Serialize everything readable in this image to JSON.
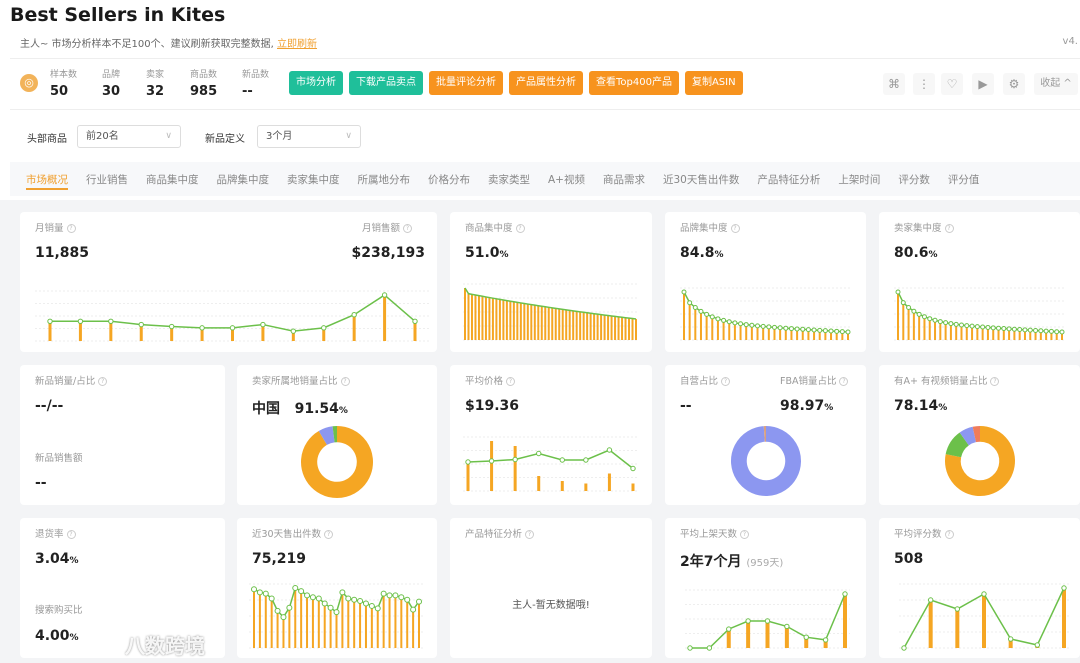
{
  "title": "Best Sellers in Kites",
  "notice": {
    "text": "主人~ 市场分析样本不足100个、建议刷新获取完整数据,",
    "link": "立即刷新"
  },
  "version": "v4.",
  "stats": [
    {
      "label": "样本数",
      "value": "50"
    },
    {
      "label": "品牌",
      "value": "30"
    },
    {
      "label": "卖家",
      "value": "32"
    },
    {
      "label": "商品数",
      "value": "985"
    },
    {
      "label": "新品数",
      "value": "--"
    }
  ],
  "buttons": [
    "市场分析",
    "下载产品卖点",
    "批量评论分析",
    "产品属性分析",
    "查看Top400产品",
    "复制ASIN"
  ],
  "toolbar": {
    "collapse": "收起 ^"
  },
  "filters": {
    "head_label": "头部商品",
    "head_value": "前20名",
    "new_label": "新品定义",
    "new_value": "3个月"
  },
  "tabs": [
    "市场概况",
    "行业销售",
    "商品集中度",
    "品牌集中度",
    "卖家集中度",
    "所属地分布",
    "价格分布",
    "卖家类型",
    "A+视频",
    "商品需求",
    "近30天售出件数",
    "产品特征分析",
    "上架时间",
    "评分数",
    "评分值"
  ],
  "colors": {
    "orange": "#f5a623",
    "green": "#6cc04a",
    "blue": "#8c97f0",
    "teal": "#1fbf9a",
    "red": "#f07c5a"
  },
  "cards": {
    "sales": {
      "title": "月销量",
      "value": "11,885",
      "title2": "月销售额",
      "value2": "$238,193",
      "bars": [
        3,
        3,
        3,
        2.5,
        2.2,
        2,
        2,
        2.5,
        1.5,
        2,
        4,
        7,
        3
      ],
      "line": [
        3,
        3,
        3,
        2.5,
        2.2,
        2,
        2,
        2.5,
        1.5,
        2,
        4,
        7,
        3
      ]
    },
    "product_conc": {
      "title": "商品集中度",
      "value": "51.0",
      "unit": "%"
    },
    "brand_conc": {
      "title": "品牌集中度",
      "value": "84.8",
      "unit": "%"
    },
    "seller_conc": {
      "title": "卖家集中度",
      "value": "80.6",
      "unit": "%"
    },
    "new_sales": {
      "title": "新品销量/占比",
      "value": "--/--",
      "title2": "新品销售额",
      "value2": "--"
    },
    "seller_loc": {
      "title": "卖家所属地销量占比",
      "country": "中国",
      "value": "91.54",
      "unit": "%",
      "slices": [
        91.54,
        6.5,
        1.96
      ]
    },
    "avg_price": {
      "title": "平均价格",
      "value": "$19.36",
      "bars": [
        0.6,
        1,
        0.9,
        0.3,
        0.2,
        0.15,
        0.35,
        0.15
      ],
      "line": [
        0.58,
        0.6,
        0.63,
        0.75,
        0.62,
        0.62,
        0.82,
        0.45
      ]
    },
    "fba": {
      "title": "自营占比",
      "value": "--",
      "title2": "FBA销量占比",
      "value2": "98.97",
      "unit": "%",
      "slices": [
        98.97,
        1.03
      ]
    },
    "aplus": {
      "title": "有A+ 有视频销量占比",
      "value": "78.14",
      "unit": "%",
      "slices": [
        78.14,
        12,
        6.5,
        3.36
      ]
    },
    "return": {
      "title": "退货率",
      "value": "3.04",
      "unit": "%",
      "title2": "搜索购买比",
      "value2": "4.00",
      "unit2": "%"
    },
    "sold30": {
      "title": "近30天售出件数",
      "value": "75,219",
      "line": [
        0.95,
        0.9,
        0.88,
        0.8,
        0.6,
        0.5,
        0.65,
        0.97,
        0.92,
        0.85,
        0.82,
        0.8,
        0.72,
        0.65,
        0.58,
        0.9,
        0.8,
        0.78,
        0.76,
        0.72,
        0.68,
        0.64,
        0.88,
        0.85,
        0.85,
        0.82,
        0.78,
        0.62,
        0.75
      ]
    },
    "features": {
      "title": "产品特征分析",
      "empty": "主人-暂无数据哦!"
    },
    "listing": {
      "title": "平均上架天数",
      "value": "2年7个月",
      "sub": "(959天)",
      "bars": [
        0,
        0,
        0.35,
        0.5,
        0.5,
        0.4,
        0.2,
        0.15,
        1
      ],
      "line": [
        0,
        0,
        0.35,
        0.5,
        0.5,
        0.4,
        0.2,
        0.15,
        1
      ]
    },
    "rating_count": {
      "title": "平均评分数",
      "value": "508",
      "bars": [
        0,
        0.8,
        0.65,
        0.9,
        0.15,
        0.05,
        1
      ],
      "line": [
        0,
        0.8,
        0.65,
        0.9,
        0.15,
        0.05,
        1
      ]
    }
  },
  "watermark": "八数跨境"
}
